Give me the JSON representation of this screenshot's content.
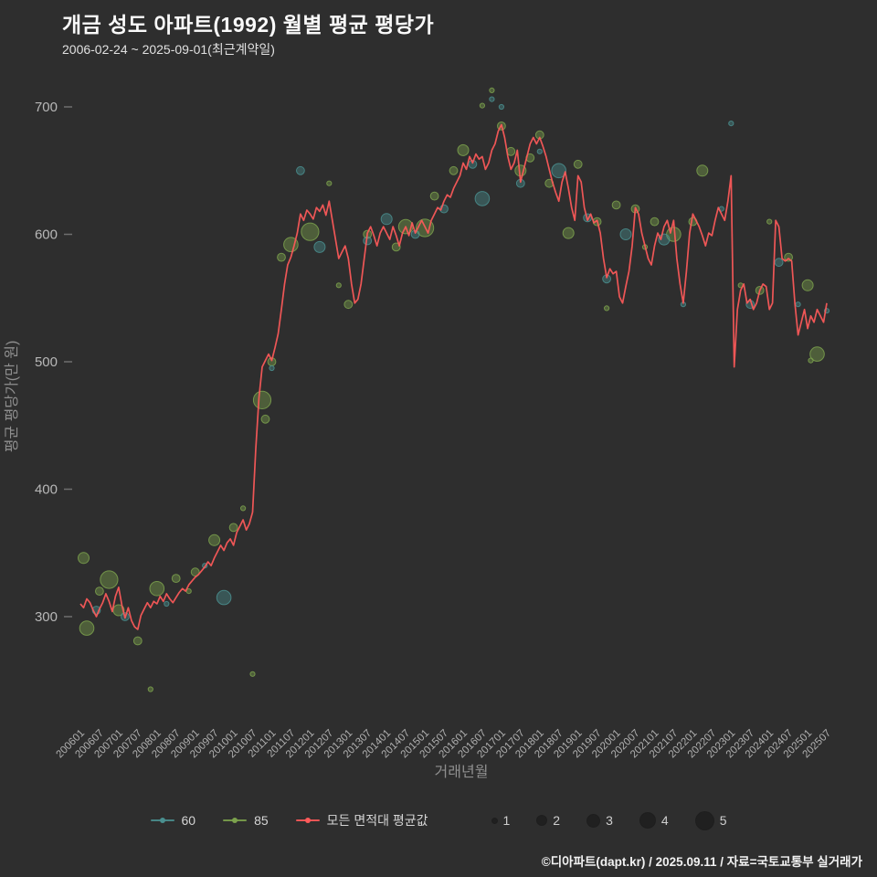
{
  "title": "개금 성도 아파트(1992) 월별 평균 평당가",
  "subtitle": "2006-02-24 ~ 2025-09-01(최근계약일)",
  "footer": "©디아파트(dapt.kr) / 2025.09.11 / 자료=국토교통부 실거래가",
  "colors": {
    "background": "#2e2e2e",
    "teal": "#4a8f8f",
    "green": "#7ca24d",
    "red": "#ff5a5a",
    "size_dot": "#202020",
    "text": "#fafafa",
    "muted": "#8f8f8f"
  },
  "legend": {
    "s60": "60",
    "s85": "85",
    "avg": "모든 면적대 평균값",
    "sizes": [
      "1",
      "2",
      "3",
      "4",
      "5"
    ]
  },
  "chart_data": {
    "type": "scatter",
    "title": "개금 성도 아파트(1992) 월별 평균 평당가",
    "xlabel": "거래년월",
    "ylabel": "평균 평당가(만 원)",
    "x_start": "2006-01",
    "x_end": "2025-07",
    "yticks": [
      300,
      400,
      500,
      600,
      700
    ],
    "ylim": [
      230,
      730
    ],
    "xtick_every_months": 6,
    "grid": false,
    "legend_position": "bottom",
    "line_series": {
      "name": "모든 면적대 평균값",
      "start": "2006-01",
      "values": [
        310,
        307,
        314,
        311,
        305,
        300,
        306,
        311,
        318,
        312,
        304,
        316,
        323,
        309,
        299,
        307,
        297,
        292,
        290,
        301,
        306,
        311,
        307,
        312,
        310,
        316,
        312,
        318,
        314,
        311,
        315,
        319,
        322,
        320,
        325,
        328,
        331,
        333,
        336,
        339,
        343,
        340,
        346,
        351,
        356,
        352,
        358,
        361,
        356,
        366,
        371,
        376,
        368,
        373,
        382,
        432,
        472,
        496,
        501,
        506,
        501,
        511,
        522,
        541,
        561,
        576,
        582,
        591,
        601,
        616,
        611,
        619,
        616,
        612,
        621,
        618,
        623,
        615,
        626,
        611,
        596,
        581,
        586,
        591,
        581,
        561,
        546,
        549,
        561,
        581,
        601,
        606,
        599,
        591,
        601,
        606,
        601,
        596,
        606,
        599,
        591,
        601,
        606,
        599,
        609,
        601,
        606,
        611,
        606,
        601,
        611,
        616,
        621,
        619,
        626,
        631,
        629,
        636,
        641,
        646,
        656,
        651,
        661,
        656,
        663,
        659,
        661,
        651,
        656,
        666,
        671,
        681,
        686,
        676,
        661,
        651,
        656,
        666,
        641,
        651,
        661,
        671,
        676,
        671,
        676,
        669,
        661,
        651,
        641,
        633,
        626,
        641,
        649,
        636,
        621,
        611,
        646,
        641,
        621,
        611,
        616,
        609,
        611,
        601,
        581,
        566,
        573,
        569,
        571,
        551,
        546,
        559,
        571,
        591,
        621,
        616,
        601,
        591,
        581,
        576,
        591,
        601,
        596,
        606,
        611,
        601,
        611,
        581,
        561,
        546,
        571,
        601,
        616,
        611,
        606,
        599,
        591,
        601,
        599,
        611,
        621,
        616,
        611,
        626,
        646,
        496,
        541,
        556,
        561,
        546,
        549,
        541,
        546,
        556,
        561,
        559,
        541,
        546,
        611,
        606,
        581,
        579,
        581,
        579,
        546,
        521,
        531,
        541,
        526,
        536,
        531,
        541,
        536,
        531,
        546
      ]
    },
    "scatter_series": [
      {
        "name": "60",
        "points": [
          [
            "200606",
            305,
            2
          ],
          [
            "200703",
            300,
            2
          ],
          [
            "200804",
            310,
            1
          ],
          [
            "200904",
            340,
            1
          ],
          [
            "200910",
            315,
            4
          ],
          [
            "201101",
            495,
            1
          ],
          [
            "201110",
            650,
            2
          ],
          [
            "201204",
            590,
            3
          ],
          [
            "201307",
            595,
            2
          ],
          [
            "201401",
            612,
            3
          ],
          [
            "201410",
            600,
            2
          ],
          [
            "201507",
            620,
            2
          ],
          [
            "201604",
            655,
            2
          ],
          [
            "201607",
            628,
            4
          ],
          [
            "201610",
            706,
            1
          ],
          [
            "201701",
            700,
            1
          ],
          [
            "201707",
            640,
            2
          ],
          [
            "201801",
            665,
            1
          ],
          [
            "201807",
            650,
            4
          ],
          [
            "201904",
            613,
            2
          ],
          [
            "201910",
            565,
            2
          ],
          [
            "202004",
            600,
            3
          ],
          [
            "202104",
            596,
            3
          ],
          [
            "202110",
            545,
            1
          ],
          [
            "202210",
            620,
            1
          ],
          [
            "202301",
            687,
            1
          ],
          [
            "202307",
            545,
            2
          ],
          [
            "202404",
            578,
            2
          ],
          [
            "202410",
            545,
            1
          ],
          [
            "202507",
            540,
            1
          ]
        ]
      },
      {
        "name": "85",
        "points": [
          [
            "200602",
            346,
            3
          ],
          [
            "200603",
            291,
            4
          ],
          [
            "200607",
            320,
            2
          ],
          [
            "200610",
            329,
            5
          ],
          [
            "200701",
            305,
            3
          ],
          [
            "200707",
            281,
            2
          ],
          [
            "200711",
            243,
            1
          ],
          [
            "200801",
            322,
            4
          ],
          [
            "200807",
            330,
            2
          ],
          [
            "200811",
            320,
            1
          ],
          [
            "200901",
            335,
            2
          ],
          [
            "200907",
            360,
            3
          ],
          [
            "201001",
            370,
            2
          ],
          [
            "201004",
            385,
            1
          ],
          [
            "201007",
            255,
            1
          ],
          [
            "201010",
            470,
            5
          ],
          [
            "201011",
            455,
            2
          ],
          [
            "201101",
            500,
            2
          ],
          [
            "201104",
            582,
            2
          ],
          [
            "201107",
            592,
            4
          ],
          [
            "201201",
            602,
            5
          ],
          [
            "201207",
            640,
            1
          ],
          [
            "201210",
            560,
            1
          ],
          [
            "201301",
            545,
            2
          ],
          [
            "201307",
            600,
            2
          ],
          [
            "201404",
            590,
            2
          ],
          [
            "201407",
            606,
            4
          ],
          [
            "201501",
            605,
            5
          ],
          [
            "201504",
            630,
            2
          ],
          [
            "201510",
            650,
            2
          ],
          [
            "201601",
            666,
            3
          ],
          [
            "201607",
            701,
            1
          ],
          [
            "201610",
            713,
            1
          ],
          [
            "201701",
            685,
            2
          ],
          [
            "201704",
            665,
            2
          ],
          [
            "201707",
            650,
            3
          ],
          [
            "201710",
            660,
            2
          ],
          [
            "201801",
            678,
            2
          ],
          [
            "201804",
            640,
            2
          ],
          [
            "201810",
            601,
            3
          ],
          [
            "201901",
            655,
            2
          ],
          [
            "201907",
            610,
            2
          ],
          [
            "201910",
            542,
            1
          ],
          [
            "202001",
            623,
            2
          ],
          [
            "202007",
            620,
            2
          ],
          [
            "202010",
            590,
            1
          ],
          [
            "202101",
            610,
            2
          ],
          [
            "202107",
            600,
            4
          ],
          [
            "202201",
            610,
            2
          ],
          [
            "202204",
            650,
            3
          ],
          [
            "202304",
            560,
            1
          ],
          [
            "202310",
            556,
            2
          ],
          [
            "202401",
            610,
            1
          ],
          [
            "202407",
            582,
            2
          ],
          [
            "202501",
            560,
            3
          ],
          [
            "202502",
            501,
            1
          ],
          [
            "202504",
            506,
            4
          ]
        ]
      }
    ],
    "size_legend": [
      1,
      2,
      3,
      4,
      5
    ]
  }
}
